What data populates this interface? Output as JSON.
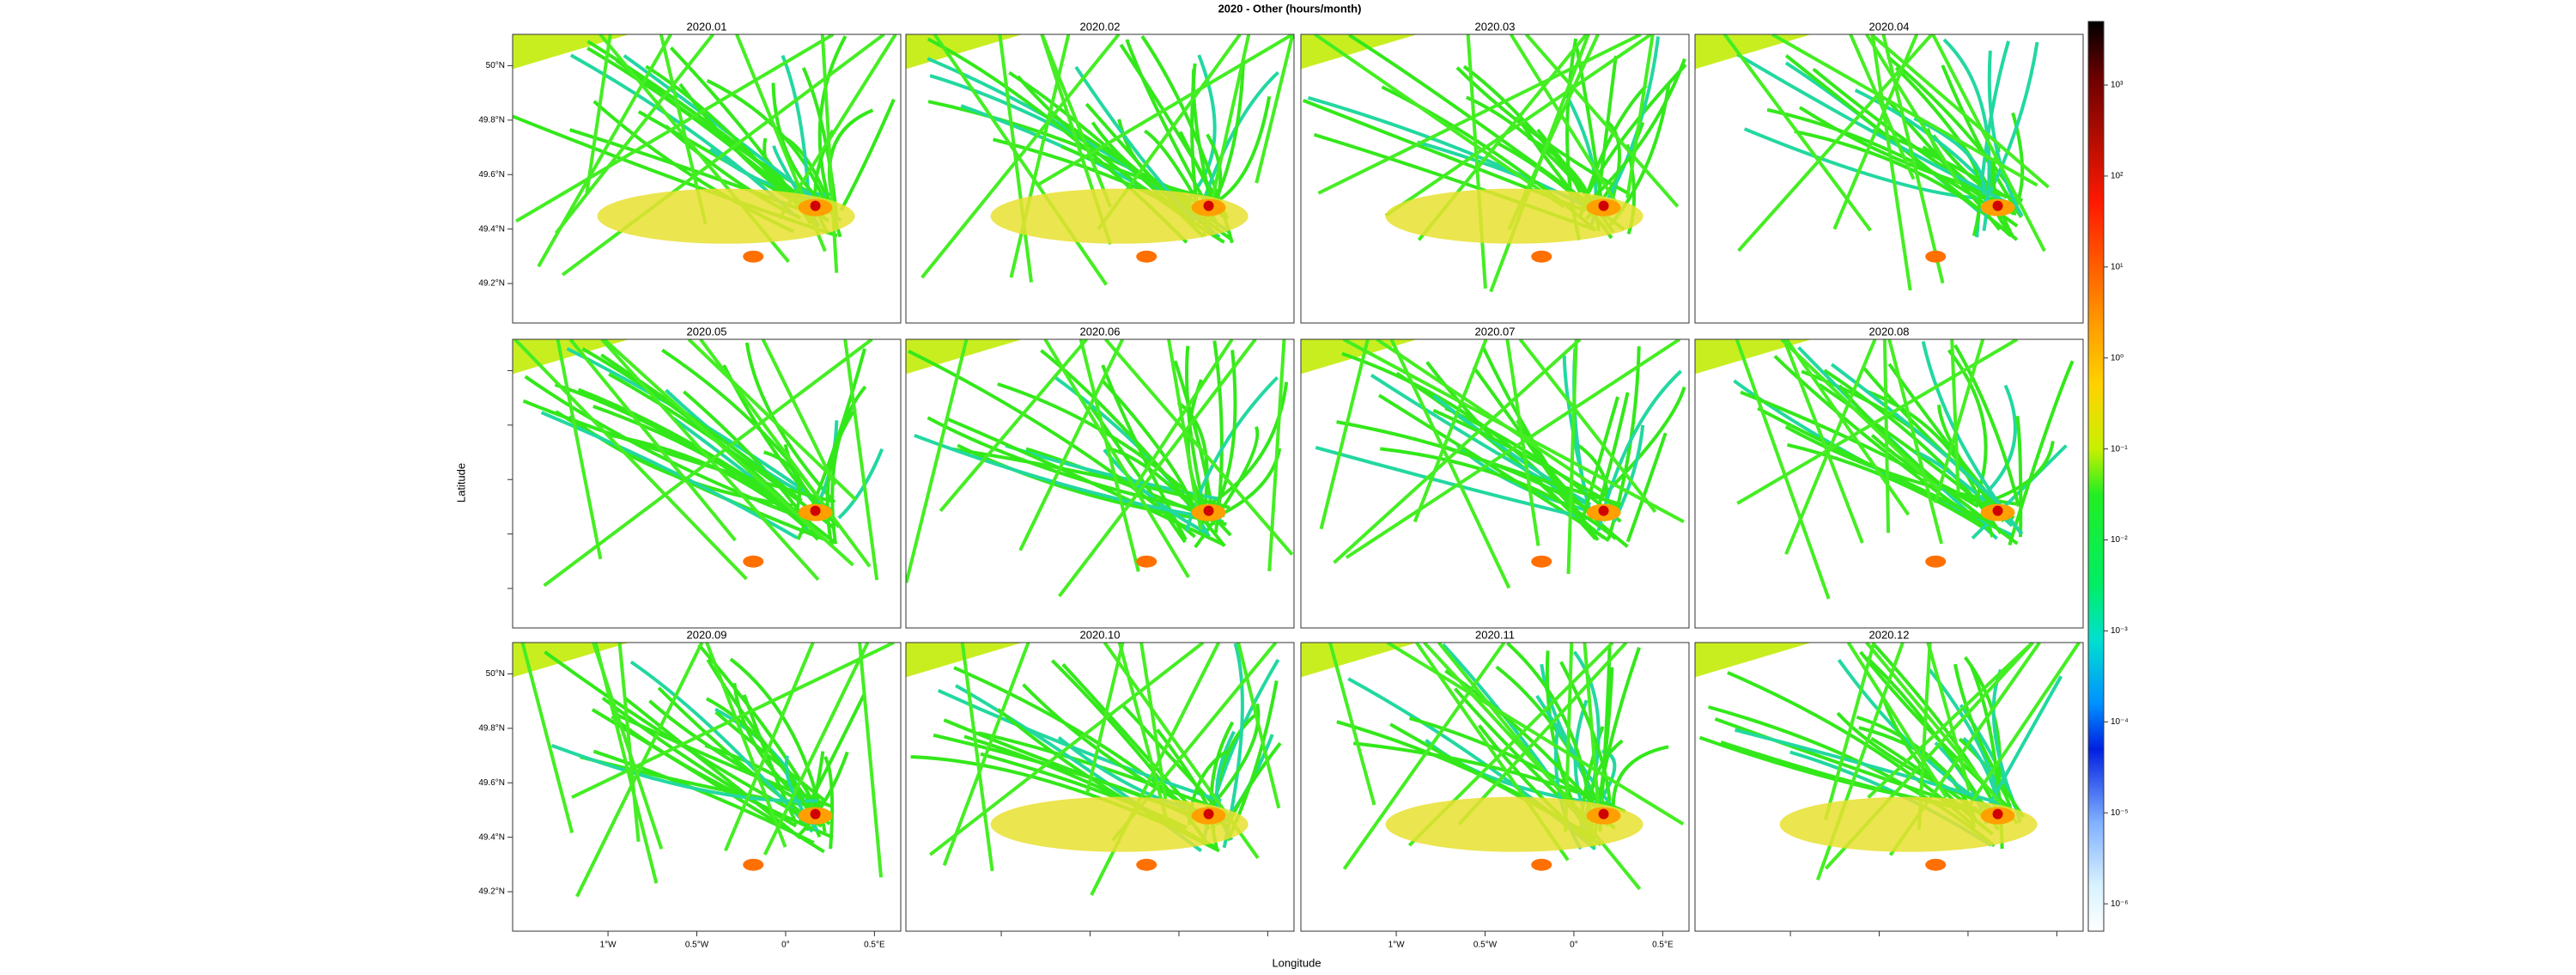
{
  "title": "2020 - Other (hours/month)",
  "x_label": "Longitude",
  "y_label": "Latitude",
  "panels": [
    {
      "title": "2020.01"
    },
    {
      "title": "2020.02"
    },
    {
      "title": "2020.03"
    },
    {
      "title": "2020.04"
    },
    {
      "title": "2020.05"
    },
    {
      "title": "2020.06"
    },
    {
      "title": "2020.07"
    },
    {
      "title": "2020.08"
    },
    {
      "title": "2020.09"
    },
    {
      "title": "2020.10"
    },
    {
      "title": "2020.11"
    },
    {
      "title": "2020.12"
    }
  ],
  "xlim": [
    -1.537,
    0.648
  ],
  "ylim": [
    49.055,
    50.115
  ],
  "xticks": [
    {
      "value": -1,
      "label": "1°W"
    },
    {
      "value": -0.5,
      "label": "0.5°W"
    },
    {
      "value": 0,
      "label": "0°"
    },
    {
      "value": 0.5,
      "label": "0.5°E"
    }
  ],
  "yticks": [
    {
      "value": 50,
      "label": "50°N"
    },
    {
      "value": 49.8,
      "label": "49.8°N"
    },
    {
      "value": 49.6,
      "label": "49.6°N"
    },
    {
      "value": 49.4,
      "label": "49.4°N"
    },
    {
      "value": 49.2,
      "label": "49.2°N"
    }
  ],
  "colorbar": {
    "log_scale": true,
    "lim": [
      5e-07,
      5000
    ],
    "ticks": [
      {
        "value": 1000,
        "label": "10³"
      },
      {
        "value": 100,
        "label": "10²"
      },
      {
        "value": 10,
        "label": "10¹"
      },
      {
        "value": 1,
        "label": "10⁰"
      },
      {
        "value": 0.1,
        "label": "10⁻¹"
      },
      {
        "value": 0.01,
        "label": "10⁻²"
      },
      {
        "value": 0.001,
        "label": "10⁻³"
      },
      {
        "value": 0.0001,
        "label": "10⁻⁴"
      },
      {
        "value": 1e-05,
        "label": "10⁻⁵"
      },
      {
        "value": 1e-06,
        "label": "10⁻⁶"
      }
    ]
  }
}
